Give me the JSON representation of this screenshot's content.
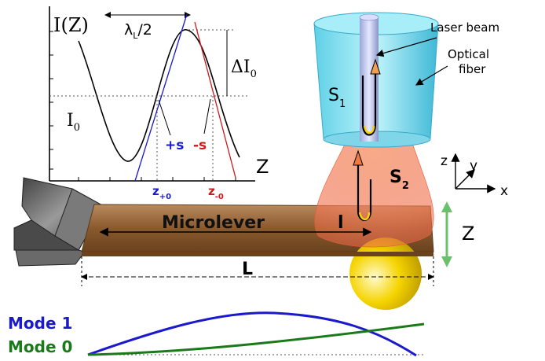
{
  "graph": {
    "y_axis_label": "I(Z)",
    "x_axis_label": "Z",
    "wavelength_label": "λ",
    "wavelength_sub": "L",
    "wavelength_suffix": "/2",
    "delta_label": "ΔI",
    "delta_sub": "0",
    "baseline_label": "I",
    "baseline_sub": "0",
    "plus_slope_label": "+s",
    "minus_slope_label": "-s",
    "z_plus_label": "z",
    "z_plus_sub": "+0",
    "z_minus_label": "z",
    "z_minus_sub": "-0"
  },
  "setup": {
    "laser_beam_label": "Laser beam",
    "optical_fiber_label_1": "Optical",
    "optical_fiber_label_2": "fiber",
    "s1_label": "S",
    "s1_sub": "1",
    "s2_label": "S",
    "s2_sub": "2",
    "microlever_label": "Microlever",
    "l_small_label": "l",
    "L_label": "L",
    "Z_motion_label": "Z",
    "axes": {
      "z": "z",
      "y": "y",
      "x": "x"
    }
  },
  "modes": {
    "mode1_label": "Mode 1",
    "mode0_label": "Mode 0",
    "colors": {
      "mode1": "#1a1acc",
      "mode0": "#1a7a1a"
    }
  },
  "colors": {
    "plus_slope": "#1a1acc",
    "minus_slope": "#cc1a1a",
    "lever": "#8a5a2e",
    "fiber": "#7fe3f0",
    "cone": "#f07a5a",
    "sphere": "#f5d400",
    "z_arrow": "#6cc06c"
  }
}
